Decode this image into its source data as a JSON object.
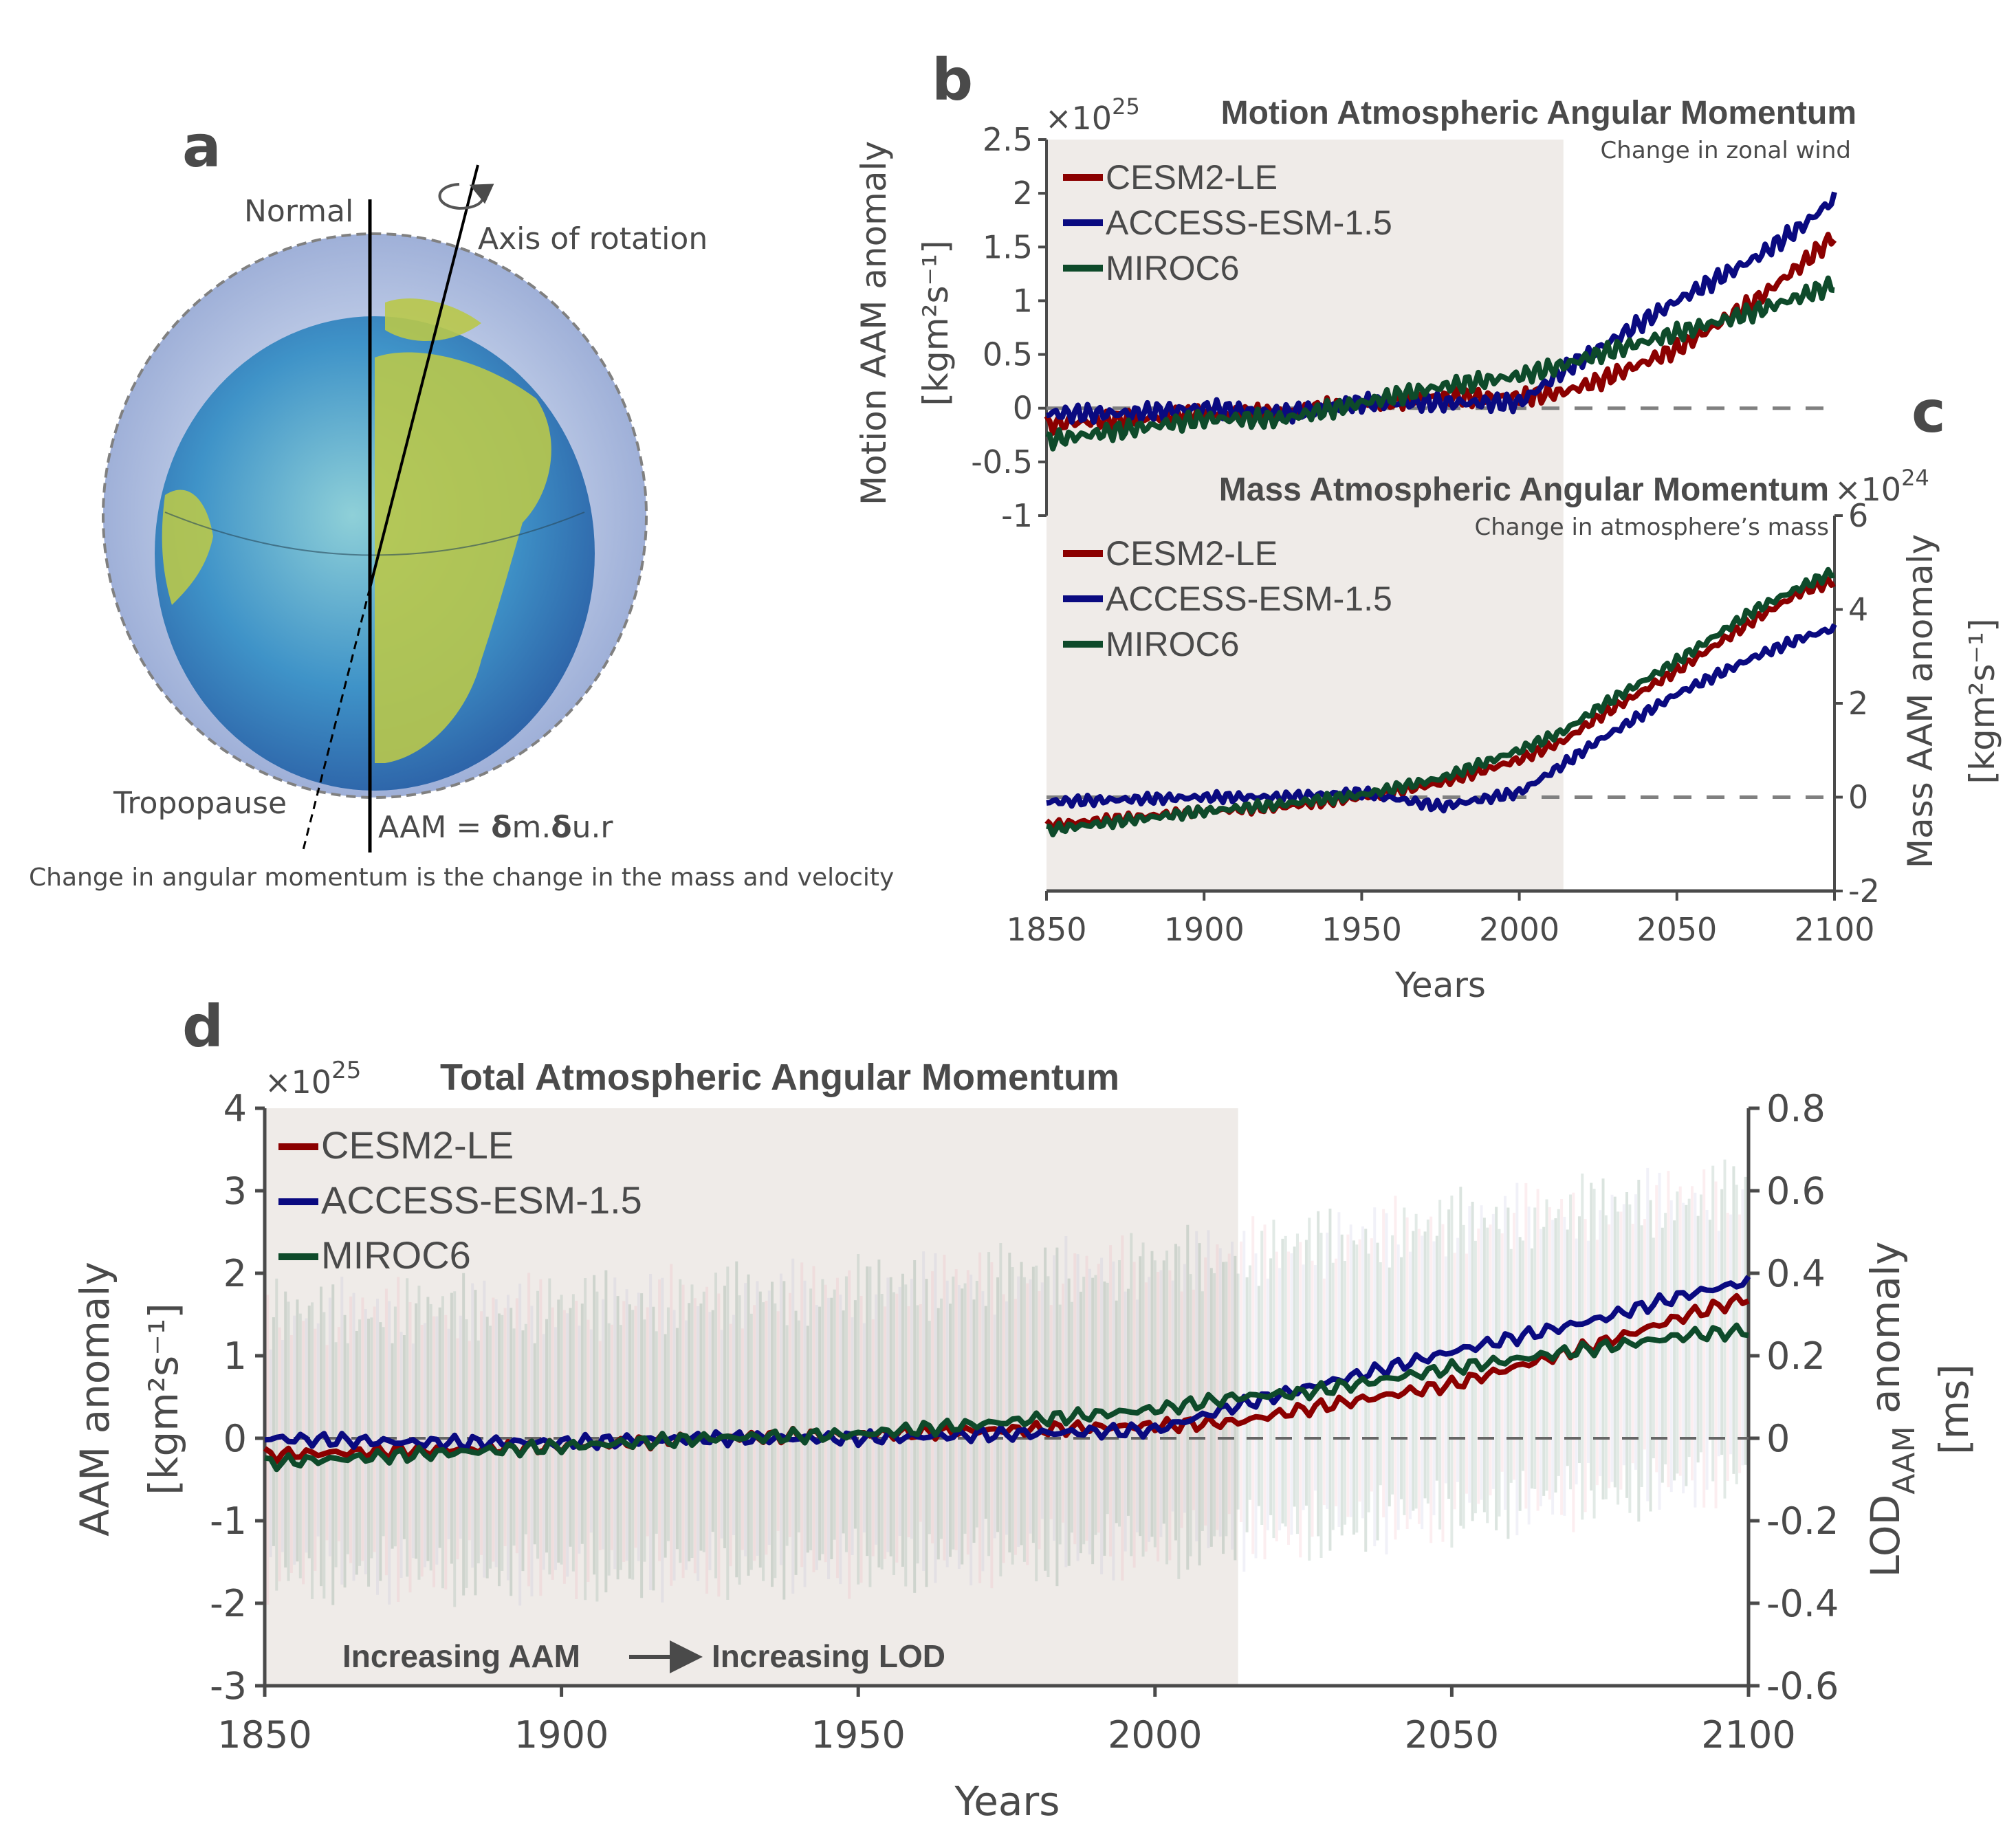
{
  "panel_a": {
    "letter": "a",
    "normal_label": "Normal",
    "axis_label": "Axis of rotation",
    "tropopause_label": "Tropopause",
    "formula_prefix": "AAM = ",
    "formula_d1": "δ",
    "formula_m": "m.",
    "formula_d2": "δ",
    "formula_rest": "u.r",
    "caption": "Change in angular momentum is the change in the mass and velocity"
  },
  "colors": {
    "CESM2-LE": "#8b0000",
    "ACCESS-ESM-1.5": "#0a0a80",
    "MIROC6": "#0e4a2a",
    "axis": "#4a4a4a",
    "shading": "#efebe8",
    "zero_line": "#808080"
  },
  "legend": [
    "CESM2-LE",
    "ACCESS-ESM-1.5",
    "MIROC6"
  ],
  "chart_data": [
    {
      "id": "b",
      "letter": "b",
      "type": "line",
      "title": "Motion Atmospheric Angular Momentum",
      "subtitle": "Change in zonal wind",
      "exponent_prefix": "×10",
      "exponent": "25",
      "ylabel_line1": "Motion AAM anomaly",
      "ylabel_line2": "[kgm²s⁻¹]",
      "ylim": [
        -1,
        2.5
      ],
      "yticks": [
        2.5,
        2,
        1.5,
        1,
        0.5,
        0,
        -0.5,
        -1
      ],
      "ytick_labels": [
        "2.5",
        "2",
        "1.5",
        "1",
        "0.5",
        "0",
        "-0.5",
        "-1"
      ],
      "xlim": [
        1850,
        2100
      ],
      "historical_shading_end": 2014,
      "zero_line": true,
      "legend_position": "top-left",
      "series": [
        {
          "name": "CESM2-LE",
          "x": [
            1850,
            1875,
            1900,
            1925,
            1950,
            1975,
            2000,
            2014,
            2025,
            2050,
            2075,
            2090,
            2100
          ],
          "y": [
            -0.15,
            -0.1,
            -0.05,
            -0.05,
            0.05,
            0.1,
            0.1,
            0.15,
            0.25,
            0.55,
            1.0,
            1.35,
            1.6
          ]
        },
        {
          "name": "ACCESS-ESM-1.5",
          "x": [
            1850,
            1875,
            1900,
            1925,
            1950,
            1975,
            2000,
            2014,
            2025,
            2050,
            2075,
            2090,
            2100
          ],
          "y": [
            -0.05,
            -0.05,
            0.0,
            -0.05,
            0.05,
            0.05,
            0.05,
            0.35,
            0.55,
            1.0,
            1.4,
            1.7,
            1.95
          ]
        },
        {
          "name": "MIROC6",
          "x": [
            1850,
            1875,
            1900,
            1925,
            1950,
            1975,
            2000,
            2014,
            2025,
            2050,
            2075,
            2090,
            2100
          ],
          "y": [
            -0.3,
            -0.2,
            -0.1,
            -0.1,
            0.05,
            0.2,
            0.3,
            0.4,
            0.5,
            0.7,
            0.9,
            1.05,
            1.15
          ]
        }
      ]
    },
    {
      "id": "c",
      "letter": "c",
      "type": "line",
      "title": "Mass Atmospheric Angular Momentum",
      "subtitle": "Change in atmosphere’s mass",
      "exponent_prefix": "×10",
      "exponent": "24",
      "ylabel_line1": "Mass AAM anomaly",
      "ylabel_line2": "[kgm²s⁻¹]",
      "ylim": [
        -2,
        6
      ],
      "yticks": [
        6,
        4,
        2,
        0,
        -2
      ],
      "ytick_labels": [
        "6",
        "4",
        "2",
        "0",
        "-2"
      ],
      "xlim": [
        1850,
        2100
      ],
      "xticks": [
        1850,
        1900,
        1950,
        2000,
        2050,
        2100
      ],
      "xtick_labels": [
        "1850",
        "1900",
        "1950",
        "2000",
        "2050",
        "2100"
      ],
      "xlabel": "Years",
      "historical_shading_end": 2014,
      "zero_line": true,
      "legend_position": "top-left",
      "series": [
        {
          "name": "CESM2-LE",
          "x": [
            1850,
            1875,
            1900,
            1925,
            1950,
            1975,
            2000,
            2014,
            2025,
            2050,
            2075,
            2090,
            2100
          ],
          "y": [
            -0.6,
            -0.45,
            -0.3,
            -0.2,
            0.0,
            0.3,
            0.8,
            1.2,
            1.7,
            2.7,
            3.8,
            4.4,
            4.6
          ]
        },
        {
          "name": "ACCESS-ESM-1.5",
          "x": [
            1850,
            1875,
            1900,
            1925,
            1950,
            1975,
            2000,
            2014,
            2025,
            2050,
            2075,
            2090,
            2100
          ],
          "y": [
            -0.1,
            -0.05,
            0.0,
            0.0,
            0.1,
            -0.2,
            0.1,
            0.7,
            1.2,
            2.2,
            3.0,
            3.4,
            3.6
          ]
        },
        {
          "name": "MIROC6",
          "x": [
            1850,
            1875,
            1900,
            1925,
            1950,
            1975,
            2000,
            2014,
            2025,
            2050,
            2075,
            2090,
            2100
          ],
          "y": [
            -0.7,
            -0.5,
            -0.3,
            -0.15,
            0.05,
            0.4,
            1.0,
            1.4,
            1.9,
            2.9,
            4.0,
            4.5,
            4.8
          ]
        }
      ]
    },
    {
      "id": "d",
      "letter": "d",
      "type": "line",
      "title": "Total Atmospheric Angular Momentum",
      "exponent_prefix": "×10",
      "exponent": "25",
      "ylabel_line1": "AAM anomaly",
      "ylabel_line2": "[kgm²s⁻¹]",
      "y2label_line1": "LOD",
      "y2label_sub": "AAM",
      "y2label_rest": " anomaly",
      "y2label_line2": "[ms]",
      "ylim": [
        -3,
        4
      ],
      "yticks": [
        4,
        3,
        2,
        1,
        0,
        -1,
        -2,
        -3
      ],
      "ytick_labels": [
        "4",
        "3",
        "2",
        "1",
        "0",
        "-1",
        "-2",
        "-3"
      ],
      "y2lim": [
        -0.6,
        0.8
      ],
      "y2ticks": [
        0.8,
        0.6,
        0.4,
        0.2,
        0,
        -0.2,
        -0.4,
        -0.6
      ],
      "y2tick_labels": [
        "0.8",
        "0.6",
        "0.4",
        "0.2",
        "0",
        "-0.2",
        "-0.4",
        "-0.6"
      ],
      "xlim": [
        1850,
        2100
      ],
      "xticks": [
        1850,
        1900,
        1950,
        2000,
        2050,
        2100
      ],
      "xtick_labels": [
        "1850",
        "1900",
        "1950",
        "2000",
        "2050",
        "2100"
      ],
      "xlabel": "Years",
      "historical_shading_end": 2014,
      "zero_line": true,
      "legend_position": "top-left",
      "annotation_left": "Increasing AAM",
      "annotation_right": "Increasing LOD",
      "ensemble_spread": {
        "x": [
          1850,
          1900,
          1950,
          2000,
          2050,
          2100
        ],
        "upper": [
          1.5,
          1.6,
          1.8,
          2.1,
          2.6,
          3.0
        ],
        "lower": [
          -1.6,
          -1.6,
          -1.5,
          -1.3,
          -0.9,
          -0.4
        ]
      },
      "series": [
        {
          "name": "CESM2-LE",
          "x": [
            1850,
            1875,
            1900,
            1925,
            1950,
            1975,
            2000,
            2014,
            2025,
            2050,
            2075,
            2090,
            2100
          ],
          "y": [
            -0.2,
            -0.15,
            -0.1,
            0.0,
            0.05,
            0.1,
            0.15,
            0.2,
            0.35,
            0.65,
            1.15,
            1.5,
            1.7
          ]
        },
        {
          "name": "ACCESS-ESM-1.5",
          "x": [
            1850,
            1875,
            1900,
            1925,
            1950,
            1975,
            2000,
            2014,
            2025,
            2050,
            2075,
            2090,
            2100
          ],
          "y": [
            0.0,
            -0.05,
            -0.05,
            0.0,
            0.0,
            0.05,
            0.1,
            0.4,
            0.6,
            1.05,
            1.45,
            1.75,
            1.9
          ]
        },
        {
          "name": "MIROC6",
          "x": [
            1850,
            1875,
            1900,
            1925,
            1950,
            1975,
            2000,
            2014,
            2025,
            2050,
            2075,
            2090,
            2100
          ],
          "y": [
            -0.3,
            -0.2,
            -0.1,
            0.0,
            0.05,
            0.2,
            0.35,
            0.5,
            0.55,
            0.85,
            1.1,
            1.25,
            1.3
          ]
        }
      ]
    }
  ]
}
